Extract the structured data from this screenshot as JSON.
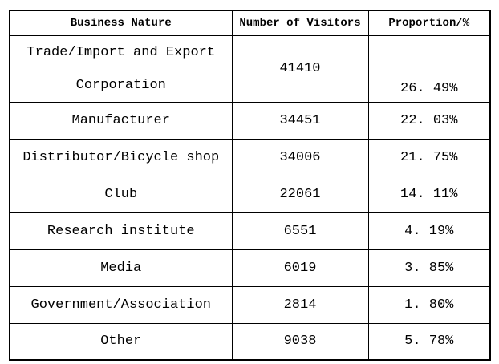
{
  "page": {
    "background_color": "#ffffff",
    "border_color": "#000000",
    "text_color": "#000000"
  },
  "table": {
    "headers": {
      "business_nature": "Business Nature",
      "visitors": "Number of Visitors",
      "proportion": "Proportion/%"
    },
    "rows": [
      {
        "name_lines": [
          "Trade/Import and Export",
          "Corporation"
        ],
        "visitors": "41410",
        "proportion": "26. 49%"
      },
      {
        "name_lines": [
          "Manufacturer"
        ],
        "visitors": "34451",
        "proportion": "22. 03%"
      },
      {
        "name_lines": [
          "Distributor/Bicycle shop"
        ],
        "visitors": "34006",
        "proportion": "21. 75%"
      },
      {
        "name_lines": [
          "Club"
        ],
        "visitors": "22061",
        "proportion": "14. 11%"
      },
      {
        "name_lines": [
          "Research institute"
        ],
        "visitors": "6551",
        "proportion": "4. 19%"
      },
      {
        "name_lines": [
          "Media"
        ],
        "visitors": "6019",
        "proportion": "3. 85%"
      },
      {
        "name_lines": [
          "Government/Association"
        ],
        "visitors": "2814",
        "proportion": "1. 80%"
      },
      {
        "name_lines": [
          "Other"
        ],
        "visitors": "9038",
        "proportion": "5. 78%"
      }
    ]
  },
  "chart_data": {
    "type": "table",
    "title": "",
    "columns": [
      "Business Nature",
      "Number of Visitors",
      "Proportion/%"
    ],
    "categories": [
      "Trade/Import and Export Corporation",
      "Manufacturer",
      "Distributor/Bicycle shop",
      "Club",
      "Research institute",
      "Media",
      "Government/Association",
      "Other"
    ],
    "series": [
      {
        "name": "Number of Visitors",
        "values": [
          41410,
          34451,
          34006,
          22061,
          6551,
          6019,
          2814,
          9038
        ]
      },
      {
        "name": "Proportion/%",
        "values": [
          26.49,
          22.03,
          21.75,
          14.11,
          4.19,
          3.85,
          1.8,
          5.78
        ]
      }
    ]
  }
}
